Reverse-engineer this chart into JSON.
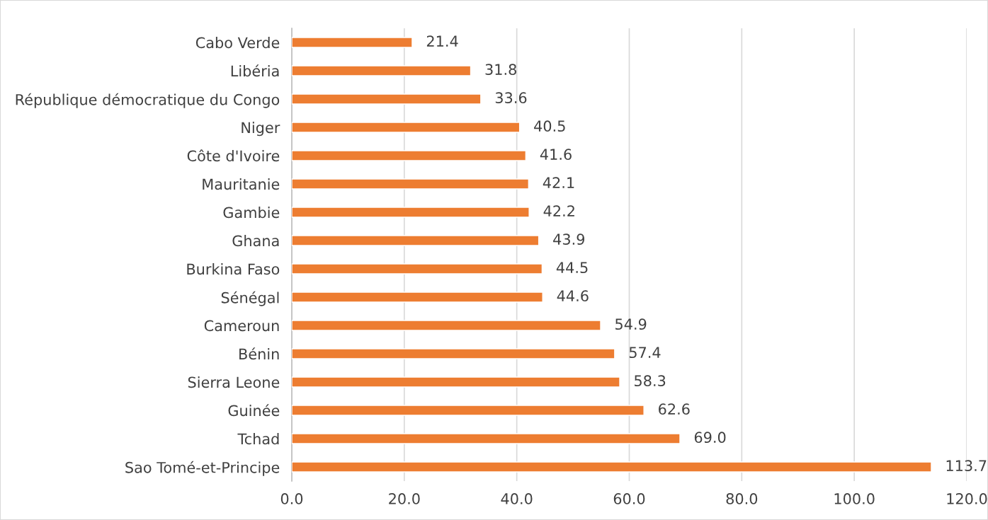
{
  "chart_data": {
    "type": "bar",
    "orientation": "horizontal",
    "categories": [
      "Cabo Verde",
      "Libéria",
      "République démocratique du Congo",
      "Niger",
      "Côte d'Ivoire",
      "Mauritanie",
      "Gambie",
      "Ghana",
      "Burkina Faso",
      "Sénégal",
      "Cameroun",
      "Bénin",
      "Sierra Leone",
      "Guinée",
      "Tchad",
      "Sao Tomé-et-Principe"
    ],
    "values": [
      21.4,
      31.8,
      33.6,
      40.5,
      41.6,
      42.1,
      42.2,
      43.9,
      44.5,
      44.6,
      54.9,
      57.4,
      58.3,
      62.6,
      69.0,
      113.7
    ],
    "value_labels": [
      "21.4",
      "31.8",
      "33.6",
      "40.5",
      "41.6",
      "42.1",
      "42.2",
      "43.9",
      "44.5",
      "44.6",
      "54.9",
      "57.4",
      "58.3",
      "62.6",
      "69.0",
      "113.7"
    ],
    "color": "#ed7d31",
    "xlim": [
      0,
      120
    ],
    "xticks": [
      {
        "value": 0,
        "label": "0.0"
      },
      {
        "value": 20,
        "label": "20.0"
      },
      {
        "value": 40,
        "label": "40.0"
      },
      {
        "value": 60,
        "label": "60.0"
      },
      {
        "value": 80,
        "label": "80.0"
      },
      {
        "value": 100,
        "label": "100.0"
      },
      {
        "value": 120,
        "label": "120.0"
      }
    ],
    "grid": "x",
    "legend": false
  }
}
